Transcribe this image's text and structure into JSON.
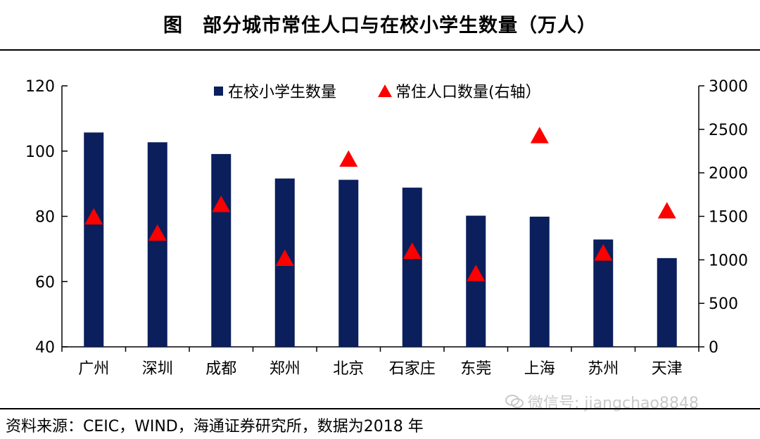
{
  "title": "图　部分城市常住人口与在校小学生数量（万人）",
  "source": "资料来源：CEIC，WIND，海通证券研究所，数据为2018 年",
  "watermark": "微信号: jiangchao8848",
  "colors": {
    "bar": "#0a1f5c",
    "marker": "#ff0000"
  },
  "chart_data": {
    "type": "bar",
    "categories": [
      "广州",
      "深圳",
      "成都",
      "郑州",
      "北京",
      "石家庄",
      "东莞",
      "上海",
      "苏州",
      "天津"
    ],
    "series": [
      {
        "name": "在校小学生数量",
        "kind": "bar",
        "axis": "left",
        "values": [
          105.7,
          102.7,
          99.1,
          91.6,
          91.2,
          88.8,
          80.2,
          79.9,
          72.9,
          67.2
        ]
      },
      {
        "name": "常住人口数量(右轴）",
        "kind": "marker",
        "axis": "right",
        "values": [
          1490,
          1303,
          1633,
          1014,
          2154,
          1095,
          839,
          2424,
          1075,
          1560
        ]
      }
    ],
    "y_left": {
      "min": 40,
      "max": 120,
      "ticks": [
        40,
        60,
        80,
        100,
        120
      ]
    },
    "y_right": {
      "min": 0,
      "max": 3000,
      "ticks": [
        0,
        500,
        1000,
        1500,
        2000,
        2500,
        3000
      ]
    },
    "legend_position": "top-center"
  }
}
